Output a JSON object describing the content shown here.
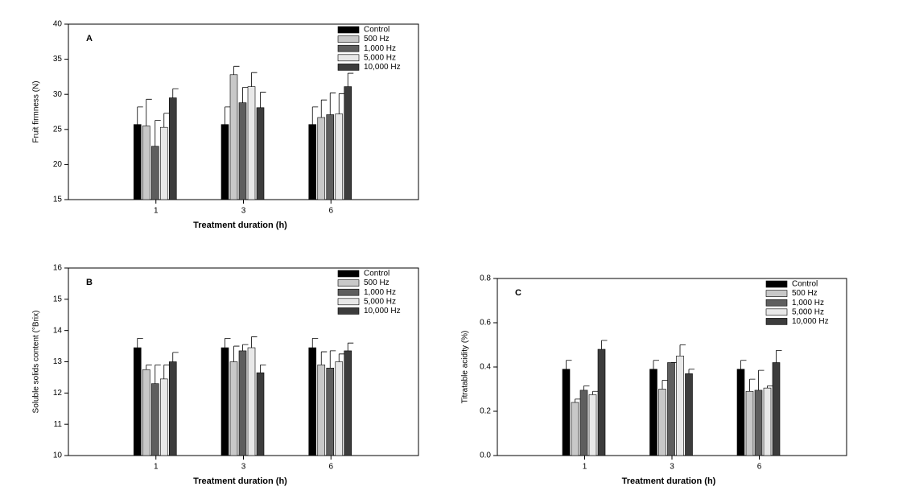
{
  "chart_data": [
    {
      "type": "bar",
      "panel_label": "A",
      "ylabel": "Fruit firmness (N)",
      "xlabel": "Treatment duration (h)",
      "categories": [
        "1",
        "3",
        "6"
      ],
      "ylim": [
        15,
        40
      ],
      "yticks": [
        15,
        20,
        25,
        30,
        35,
        40
      ],
      "legend": "upper right",
      "series": [
        {
          "name": "Control",
          "color": "#000000",
          "values": [
            25.7,
            25.7,
            25.7
          ],
          "errors": [
            2.5,
            2.5,
            2.5
          ]
        },
        {
          "name": "500 Hz",
          "color": "#c8c8c8",
          "values": [
            25.5,
            32.8,
            26.7
          ],
          "errors": [
            3.8,
            1.2,
            2.5
          ]
        },
        {
          "name": "1,000 Hz",
          "color": "#5e5e5e",
          "values": [
            22.6,
            28.8,
            27.1
          ],
          "errors": [
            3.7,
            2.2,
            3.1
          ]
        },
        {
          "name": "5,000 Hz",
          "color": "#e8e8e8",
          "values": [
            25.3,
            31.1,
            27.2
          ],
          "errors": [
            2.0,
            2.0,
            2.9
          ]
        },
        {
          "name": "10,000 Hz",
          "color": "#3c3c3c",
          "values": [
            29.5,
            28.1,
            31.1
          ],
          "errors": [
            1.3,
            2.2,
            1.9
          ]
        }
      ]
    },
    {
      "type": "bar",
      "panel_label": "B",
      "ylabel": "Soluble solids content (°Brix)",
      "xlabel": "Treatment duration (h)",
      "categories": [
        "1",
        "3",
        "6"
      ],
      "ylim": [
        10,
        16
      ],
      "yticks": [
        10,
        11,
        12,
        13,
        14,
        15,
        16
      ],
      "legend": "upper right",
      "series": [
        {
          "name": "Control",
          "color": "#000000",
          "values": [
            13.45,
            13.45,
            13.45
          ],
          "errors": [
            0.3,
            0.3,
            0.3
          ]
        },
        {
          "name": "500 Hz",
          "color": "#c8c8c8",
          "values": [
            12.75,
            13.0,
            12.9
          ],
          "errors": [
            0.15,
            0.5,
            0.42
          ]
        },
        {
          "name": "1,000 Hz",
          "color": "#5e5e5e",
          "values": [
            12.3,
            13.35,
            12.8
          ],
          "errors": [
            0.6,
            0.2,
            0.55
          ]
        },
        {
          "name": "5,000 Hz",
          "color": "#e8e8e8",
          "values": [
            12.45,
            13.45,
            13.0
          ],
          "errors": [
            0.45,
            0.35,
            0.25
          ]
        },
        {
          "name": "10,000 Hz",
          "color": "#3c3c3c",
          "values": [
            13.0,
            12.65,
            13.35
          ],
          "errors": [
            0.3,
            0.25,
            0.25
          ]
        }
      ]
    },
    {
      "type": "bar",
      "panel_label": "C",
      "ylabel": "Titratable acidity (%)",
      "xlabel": "Treatment duration (h)",
      "categories": [
        "1",
        "3",
        "6"
      ],
      "ylim": [
        0,
        0.8
      ],
      "yticks": [
        {
          "value": 0,
          "label": "0.0"
        },
        0.2,
        0.4,
        0.6,
        0.8
      ],
      "legend": "upper right",
      "series": [
        {
          "name": "Control",
          "color": "#000000",
          "values": [
            0.39,
            0.39,
            0.39
          ],
          "errors": [
            0.04,
            0.04,
            0.04
          ]
        },
        {
          "name": "500 Hz",
          "color": "#c8c8c8",
          "values": [
            0.24,
            0.3,
            0.29
          ],
          "errors": [
            0.015,
            0.04,
            0.055
          ]
        },
        {
          "name": "1,000 Hz",
          "color": "#5e5e5e",
          "values": [
            0.295,
            0.42,
            0.295
          ],
          "errors": [
            0.02,
            0,
            0.09
          ]
        },
        {
          "name": "5,000 Hz",
          "color": "#e8e8e8",
          "values": [
            0.275,
            0.45,
            0.305
          ],
          "errors": [
            0.015,
            0.05,
            0.01
          ]
        },
        {
          "name": "10,000 Hz",
          "color": "#3c3c3c",
          "values": [
            0.48,
            0.37,
            0.42
          ],
          "errors": [
            0.04,
            0.02,
            0.055
          ]
        }
      ]
    }
  ]
}
